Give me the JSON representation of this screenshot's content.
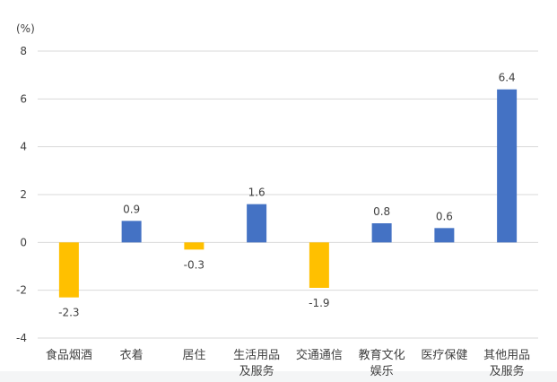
{
  "chart_data": {
    "type": "bar",
    "unit_label": "(%)",
    "categories": [
      [
        "食品烟酒"
      ],
      [
        "衣着"
      ],
      [
        "居住"
      ],
      [
        "生活用品",
        "及服务"
      ],
      [
        "交通通信"
      ],
      [
        "教育文化",
        "娱乐"
      ],
      [
        "医疗保健"
      ],
      [
        "其他用品",
        "及服务"
      ]
    ],
    "values": [
      -2.3,
      0.9,
      -0.3,
      1.6,
      -1.9,
      0.8,
      0.6,
      6.4
    ],
    "value_labels": [
      "-2.3",
      "0.9",
      "-0.3",
      "1.6",
      "-1.9",
      "0.8",
      "0.6",
      "6.4"
    ],
    "yticks": [
      -4,
      -2,
      0,
      2,
      4,
      6,
      8
    ],
    "ylim": [
      -4,
      8
    ],
    "grid": true,
    "colors": {
      "positive": "#4472c4",
      "negative": "#ffc000",
      "grid": "#d9d9d9",
      "text": "#404040"
    }
  }
}
